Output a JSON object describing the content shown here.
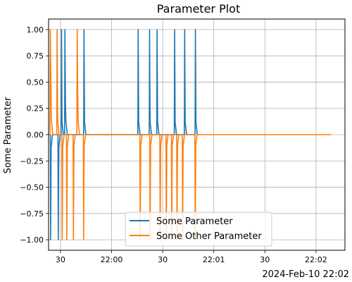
{
  "chart_data": {
    "type": "line",
    "title": "Parameter Plot",
    "ylabel": "Some Parameter",
    "xlabel": "",
    "x_offset_label": "2024-Feb-10 22:02",
    "xlim": [
      "21:59:23",
      "22:02:17"
    ],
    "ylim": [
      -1.1,
      1.1
    ],
    "grid": true,
    "legend_position": "lower center",
    "x_ticks": [
      {
        "time": "21:59:30",
        "label": "30"
      },
      {
        "time": "22:00:00",
        "label": "22:00"
      },
      {
        "time": "22:00:30",
        "label": "30"
      },
      {
        "time": "22:01:00",
        "label": "22:01"
      },
      {
        "time": "22:01:30",
        "label": "30"
      },
      {
        "time": "22:02:00",
        "label": "22:02"
      }
    ],
    "y_ticks": [
      {
        "value": -1.0,
        "label": "−1.00"
      },
      {
        "value": -0.75,
        "label": "−0.75"
      },
      {
        "value": -0.5,
        "label": "−0.50"
      },
      {
        "value": -0.25,
        "label": "−0.25"
      },
      {
        "value": 0.0,
        "label": "0.00"
      },
      {
        "value": 0.25,
        "label": "0.25"
      },
      {
        "value": 0.5,
        "label": "0.50"
      },
      {
        "value": 0.75,
        "label": "0.75"
      },
      {
        "value": 1.0,
        "label": "1.00"
      }
    ],
    "series": [
      {
        "name": "Some Parameter",
        "color": "#1f77b4",
        "points": [
          [
            "21:59:24.0",
            0.0
          ],
          [
            "21:59:24.2",
            -1.0
          ],
          [
            "21:59:24.5",
            -0.12
          ],
          [
            "21:59:25.3",
            0.0
          ],
          [
            "21:59:28.5",
            0.0
          ],
          [
            "21:59:28.7",
            -1.0
          ],
          [
            "21:59:29.0",
            -0.12
          ],
          [
            "21:59:29.8",
            0.0
          ],
          [
            "21:59:30.4",
            0.0
          ],
          [
            "21:59:30.6",
            1.0
          ],
          [
            "21:59:30.9",
            0.12
          ],
          [
            "21:59:31.7",
            0.0
          ],
          [
            "21:59:32.4",
            0.0
          ],
          [
            "21:59:32.6",
            1.0
          ],
          [
            "21:59:32.9",
            0.3
          ],
          [
            "21:59:33.2",
            0.12
          ],
          [
            "21:59:34.0",
            0.0
          ],
          [
            "21:59:43.6",
            0.0
          ],
          [
            "21:59:43.8",
            1.0
          ],
          [
            "21:59:44.1",
            0.12
          ],
          [
            "21:59:44.9",
            0.0
          ],
          [
            "22:00:15.4",
            0.0
          ],
          [
            "22:00:15.6",
            1.0
          ],
          [
            "22:00:15.9",
            0.12
          ],
          [
            "22:00:16.7",
            0.0
          ],
          [
            "22:00:22.1",
            0.0
          ],
          [
            "22:00:22.3",
            1.0
          ],
          [
            "22:00:22.6",
            0.12
          ],
          [
            "22:00:23.4",
            0.0
          ],
          [
            "22:00:26.5",
            0.0
          ],
          [
            "22:00:26.7",
            1.0
          ],
          [
            "22:00:27.0",
            0.12
          ],
          [
            "22:00:27.8",
            0.0
          ],
          [
            "22:00:36.8",
            0.0
          ],
          [
            "22:00:37.0",
            1.0
          ],
          [
            "22:00:37.3",
            0.12
          ],
          [
            "22:00:38.1",
            0.0
          ],
          [
            "22:00:42.7",
            0.0
          ],
          [
            "22:00:42.9",
            1.0
          ],
          [
            "22:00:43.2",
            0.12
          ],
          [
            "22:00:44.0",
            0.0
          ],
          [
            "22:00:49.0",
            0.0
          ],
          [
            "22:00:49.2",
            1.0
          ],
          [
            "22:00:49.5",
            0.12
          ],
          [
            "22:00:50.3",
            0.0
          ]
        ]
      },
      {
        "name": "Some Other Parameter",
        "color": "#ff7f0e",
        "points": [
          [
            "21:59:23.0",
            0.0
          ],
          [
            "21:59:23.8",
            0.0
          ],
          [
            "21:59:24.0",
            1.0
          ],
          [
            "21:59:24.3",
            0.55
          ],
          [
            "21:59:24.6",
            0.15
          ],
          [
            "21:59:25.5",
            0.0
          ],
          [
            "21:59:27.8",
            0.0
          ],
          [
            "21:59:28.0",
            1.0
          ],
          [
            "21:59:28.3",
            0.15
          ],
          [
            "21:59:29.1",
            0.0
          ],
          [
            "21:59:30.8",
            0.0
          ],
          [
            "21:59:31.0",
            -1.0
          ],
          [
            "21:59:31.3",
            -0.12
          ],
          [
            "21:59:32.1",
            0.0
          ],
          [
            "21:59:33.5",
            0.0
          ],
          [
            "21:59:33.7",
            -1.0
          ],
          [
            "21:59:34.0",
            -0.12
          ],
          [
            "21:59:34.8",
            0.0
          ],
          [
            "21:59:37.4",
            0.0
          ],
          [
            "21:59:37.6",
            -1.0
          ],
          [
            "21:59:37.9",
            -0.1
          ],
          [
            "21:59:38.7",
            0.0
          ],
          [
            "21:59:39.6",
            0.0
          ],
          [
            "21:59:39.8",
            1.0
          ],
          [
            "21:59:40.1",
            0.4
          ],
          [
            "21:59:40.4",
            0.12
          ],
          [
            "21:59:41.2",
            0.0
          ],
          [
            "21:59:43.4",
            0.0
          ],
          [
            "21:59:43.6",
            -1.0
          ],
          [
            "21:59:43.9",
            -0.1
          ],
          [
            "21:59:44.7",
            0.0
          ],
          [
            "22:00:16.6",
            0.0
          ],
          [
            "22:00:16.8",
            -1.0
          ],
          [
            "22:00:17.1",
            -0.1
          ],
          [
            "22:00:17.9",
            0.0
          ],
          [
            "22:00:22.4",
            0.0
          ],
          [
            "22:00:22.6",
            -1.0
          ],
          [
            "22:00:22.9",
            -0.1
          ],
          [
            "22:00:23.7",
            0.0
          ],
          [
            "22:00:28.3",
            0.0
          ],
          [
            "22:00:28.5",
            -1.0
          ],
          [
            "22:00:28.8",
            -0.1
          ],
          [
            "22:00:29.6",
            0.0
          ],
          [
            "22:00:31.9",
            0.0
          ],
          [
            "22:00:32.1",
            -1.0
          ],
          [
            "22:00:32.4",
            -0.1
          ],
          [
            "22:00:33.2",
            0.0
          ],
          [
            "22:00:35.1",
            0.0
          ],
          [
            "22:00:35.3",
            -1.0
          ],
          [
            "22:00:35.6",
            -0.1
          ],
          [
            "22:00:36.4",
            0.0
          ],
          [
            "22:00:38.2",
            0.0
          ],
          [
            "22:00:38.4",
            -1.0
          ],
          [
            "22:00:38.7",
            -0.1
          ],
          [
            "22:00:39.5",
            0.0
          ],
          [
            "22:00:41.5",
            0.0
          ],
          [
            "22:00:41.7",
            -1.0
          ],
          [
            "22:00:42.0",
            -0.1
          ],
          [
            "22:00:42.8",
            0.0
          ],
          [
            "22:00:48.9",
            0.0
          ],
          [
            "22:00:49.1",
            -1.0
          ],
          [
            "22:00:49.4",
            -0.1
          ],
          [
            "22:00:50.2",
            0.0
          ],
          [
            "22:02:09.0",
            0.0
          ]
        ]
      }
    ]
  }
}
